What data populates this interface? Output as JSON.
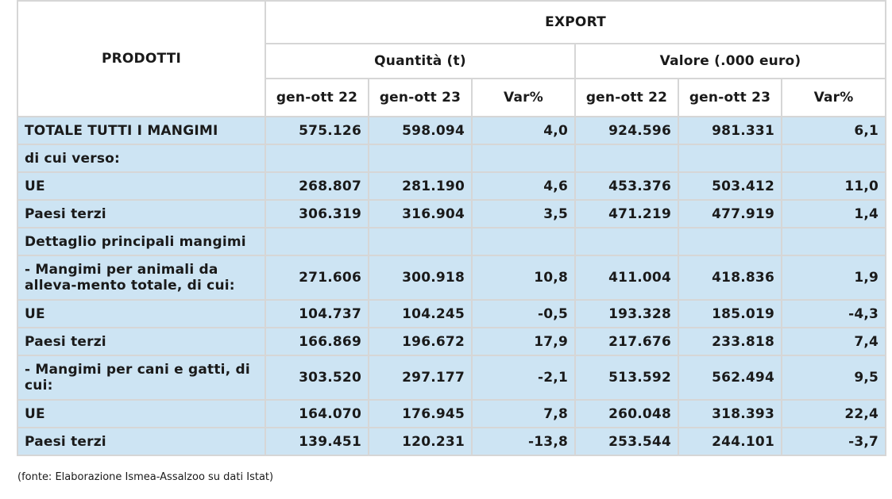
{
  "table": {
    "col_prodotti": "PRODOTTI",
    "col_export": "EXPORT",
    "group_quantita": "Quantità (t)",
    "group_valore": "Valore (.000 euro)",
    "sub_headers": [
      "gen-ott 22",
      "gen-ott 23",
      "Var%",
      "gen-ott 22",
      "gen-ott 23",
      "Var%"
    ],
    "rows": [
      {
        "label": "TOTALE TUTTI I MANGIMI",
        "values": [
          "575.126",
          "598.094",
          "4,0",
          "924.596",
          "981.331",
          "6,1"
        ]
      },
      {
        "label": "di cui verso:",
        "values": [
          "",
          "",
          "",
          "",
          "",
          ""
        ]
      },
      {
        "label": "UE",
        "values": [
          "268.807",
          "281.190",
          "4,6",
          "453.376",
          "503.412",
          "11,0"
        ]
      },
      {
        "label": "Paesi terzi",
        "values": [
          "306.319",
          "316.904",
          "3,5",
          "471.219",
          "477.919",
          "1,4"
        ]
      },
      {
        "label": "Dettaglio principali mangimi",
        "values": [
          "",
          "",
          "",
          "",
          "",
          ""
        ]
      },
      {
        "label": " - Mangimi per animali da alleva-mento totale, di cui:",
        "values": [
          "271.606",
          "300.918",
          "10,8",
          "411.004",
          "418.836",
          "1,9"
        ]
      },
      {
        "label": "UE",
        "values": [
          "104.737",
          "104.245",
          "-0,5",
          "193.328",
          "185.019",
          "-4,3"
        ]
      },
      {
        "label": "Paesi terzi",
        "values": [
          "166.869",
          "196.672",
          "17,9",
          "217.676",
          "233.818",
          "7,4"
        ]
      },
      {
        "label": " - Mangimi per cani e gatti, di cui:",
        "values": [
          "303.520",
          "297.177",
          "-2,1",
          "513.592",
          "562.494",
          "9,5"
        ]
      },
      {
        "label": "UE",
        "values": [
          "164.070",
          "176.945",
          "7,8",
          "260.048",
          "318.393",
          "22,4"
        ]
      },
      {
        "label": "Paesi terzi",
        "values": [
          "139.451",
          "120.231",
          "-13,8",
          "253.544",
          "244.101",
          "-3,7"
        ]
      }
    ]
  },
  "source_note": "(fonte: Elaborazione Ismea-Assalzoo su dati Istat)"
}
